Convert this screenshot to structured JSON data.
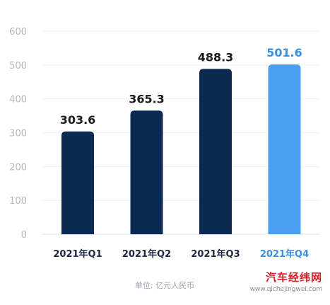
{
  "chart_data": {
    "type": "bar",
    "title": "",
    "xlabel": "",
    "ylabel": "",
    "categories": [
      "2021年Q1",
      "2021年Q2",
      "2021年Q3",
      "2021年Q4"
    ],
    "values": [
      303.6,
      365.3,
      488.3,
      501.6
    ],
    "value_labels": [
      "303.6",
      "365.3",
      "488.3",
      "501.6"
    ],
    "ylim": [
      0,
      600
    ],
    "yticks": [
      "0",
      "100",
      "200",
      "300",
      "400",
      "500",
      "600"
    ],
    "grid": true,
    "colors": {
      "default_bar": "#0b2a52",
      "highlight_bar": "#4a9ff0",
      "highlight_label": "#3a8fe0",
      "default_label": "#1a1a1a"
    },
    "highlight_index": 3,
    "unit_note": "单位:  亿元人民币"
  },
  "watermark": {
    "brand": "汽车经纬网",
    "url": "www.qichejingwei.com"
  }
}
